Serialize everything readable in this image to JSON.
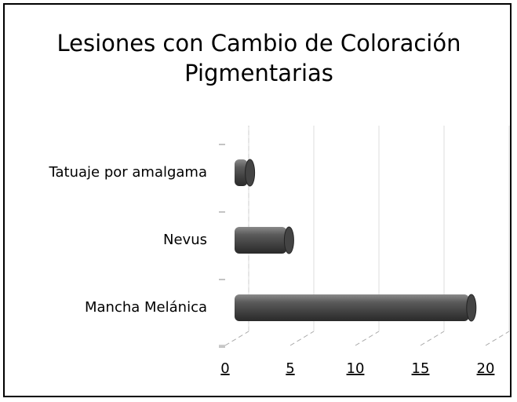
{
  "chart_data": {
    "type": "bar",
    "orientation": "horizontal",
    "title": "Lesiones con Cambio de Coloración Pigmentarias",
    "categories": [
      "Tatuaje por amalgama",
      "Nevus",
      "Mancha Melánica"
    ],
    "values": [
      1,
      4,
      18
    ],
    "color": "#4d4d4d",
    "xlim": [
      0,
      20
    ],
    "xticks": [
      0,
      5,
      10,
      15,
      20
    ],
    "grid": true
  }
}
